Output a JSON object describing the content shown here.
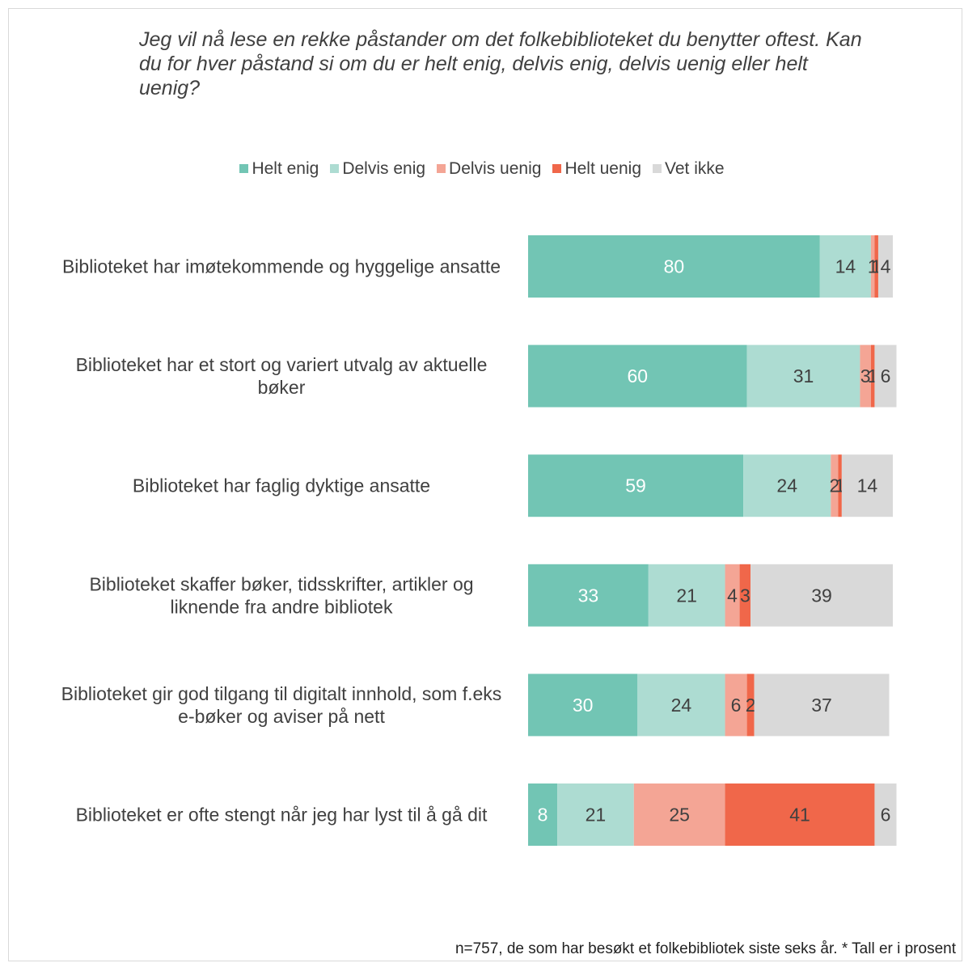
{
  "chart_data": {
    "type": "bar",
    "orientation": "horizontal",
    "stacked": true,
    "title": "Jeg vil nå lese en rekke påstander om det folkebiblioteket du benytter oftest. Kan du for hver påstand si om du er helt enig, delvis enig, delvis uenig eller helt uenig?",
    "categories": [
      "Biblioteket har imøtekommende og hyggelige ansatte",
      "Biblioteket har et stort og variert utvalg av aktuelle bøker",
      "Biblioteket har faglig dyktige ansatte",
      "Biblioteket skaffer bøker, tidsskrifter, artikler og liknende fra andre bibliotek",
      "Biblioteket gir god tilgang til digitalt innhold, som f.eks e-bøker og aviser på nett",
      "Biblioteket er ofte stengt når jeg har lyst til å gå dit"
    ],
    "series": [
      {
        "name": "Helt enig",
        "color": "#72c5b4",
        "label_color": "#ffffff",
        "values": [
          80,
          60,
          59,
          33,
          30,
          8
        ]
      },
      {
        "name": "Delvis enig",
        "color": "#addcd2",
        "label_color": "#404040",
        "values": [
          14,
          31,
          24,
          21,
          24,
          21
        ]
      },
      {
        "name": "Delvis uenig",
        "color": "#f4a595",
        "label_color": "#404040",
        "values": [
          1,
          3,
          2,
          4,
          6,
          25
        ]
      },
      {
        "name": "Helt uenig",
        "color": "#f0674a",
        "label_color": "#404040",
        "values": [
          1,
          1,
          1,
          3,
          2,
          41
        ]
      },
      {
        "name": "Vet ikke",
        "color": "#d9d9d9",
        "label_color": "#404040",
        "values": [
          4,
          6,
          14,
          39,
          37,
          6
        ]
      }
    ],
    "xlim": [
      0,
      100
    ],
    "grid": false,
    "legend": "top"
  },
  "footnote": "n=757, de som har besøkt et folkebibliotek siste seks år. * Tall er i prosent"
}
